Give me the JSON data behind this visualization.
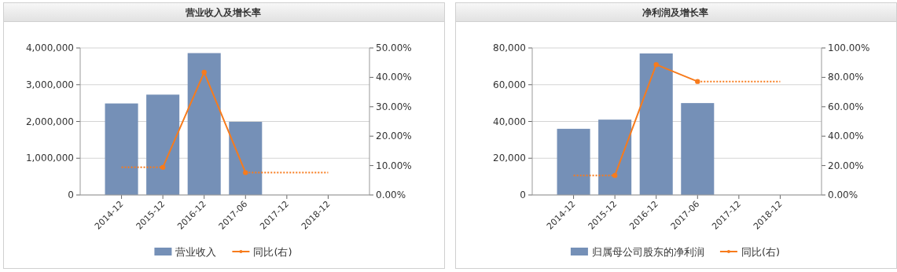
{
  "chart_data": [
    {
      "type": "bar",
      "title": "营业收入及增长率",
      "categories": [
        "2014-12",
        "2015-12",
        "2016-12",
        "2017-06",
        "2017-12",
        "2018-12"
      ],
      "series": [
        {
          "name": "营业收入",
          "color": "#7590b7",
          "values": [
            2490000,
            2730000,
            3860000,
            1990000,
            null,
            null
          ]
        },
        {
          "name": "同比(右)",
          "type": "line",
          "axis": "y2",
          "color": "#f77b1c",
          "marker": "circle",
          "line_style": "solid",
          "values": [
            null,
            9.4,
            41.7,
            7.6,
            null,
            null
          ]
        },
        {
          "type": "line",
          "axis": "y2",
          "color": "#f77b1c",
          "marker": "none",
          "line_style": "dotted",
          "values": [
            9.4,
            9.4,
            null,
            7.6,
            7.6,
            7.6
          ]
        }
      ],
      "ylim": [
        0,
        4000000
      ],
      "yticks": [
        0,
        {
          "value": 1000000,
          "label": "1,000,000"
        },
        {
          "value": 2000000,
          "label": "2,000,000"
        },
        {
          "value": 3000000,
          "label": "3,000,000"
        },
        {
          "value": 4000000,
          "label": "4,000,000"
        }
      ],
      "y2lim": [
        0,
        50
      ],
      "y2ticks": [
        {
          "value": 0,
          "label": "0.00%"
        },
        {
          "value": 10,
          "label": "10.00%"
        },
        {
          "value": 20,
          "label": "20.00%"
        },
        {
          "value": 30,
          "label": "30.00%"
        },
        {
          "value": 40,
          "label": "40.00%"
        },
        {
          "value": 50,
          "label": "50.00%"
        }
      ],
      "grid": "y",
      "legend": "bottom"
    },
    {
      "type": "bar",
      "title": "净利润及增长率",
      "categories": [
        "2014-12",
        "2015-12",
        "2016-12",
        "2017-06",
        "2017-12",
        "2018-12"
      ],
      "series": [
        {
          "name": "归属母公司股东的净利润",
          "color": "#7590b7",
          "values": [
            36000,
            41000,
            77000,
            50000,
            null,
            null
          ]
        },
        {
          "name": "同比(右)",
          "type": "line",
          "axis": "y2",
          "color": "#f77b1c",
          "marker": "circle",
          "line_style": "solid",
          "values": [
            null,
            13.3,
            88.7,
            77.2,
            null,
            null
          ]
        },
        {
          "type": "line",
          "axis": "y2",
          "color": "#f77b1c",
          "marker": "none",
          "line_style": "dotted",
          "values": [
            13.3,
            13.3,
            null,
            77.2,
            77.2,
            77.2
          ]
        }
      ],
      "ylim": [
        0,
        80000
      ],
      "yticks": [
        0,
        {
          "value": 20000,
          "label": "20,000"
        },
        {
          "value": 40000,
          "label": "40,000"
        },
        {
          "value": 60000,
          "label": "60,000"
        },
        {
          "value": 80000,
          "label": "80,000"
        }
      ],
      "y2lim": [
        0,
        100
      ],
      "y2ticks": [
        {
          "value": 0,
          "label": "0.00%"
        },
        {
          "value": 20,
          "label": "20.00%"
        },
        {
          "value": 40,
          "label": "40.00%"
        },
        {
          "value": 60,
          "label": "60.00%"
        },
        {
          "value": 80,
          "label": "80.00%"
        },
        {
          "value": 100,
          "label": "100.00%"
        }
      ],
      "grid": "y",
      "legend": "bottom"
    }
  ]
}
